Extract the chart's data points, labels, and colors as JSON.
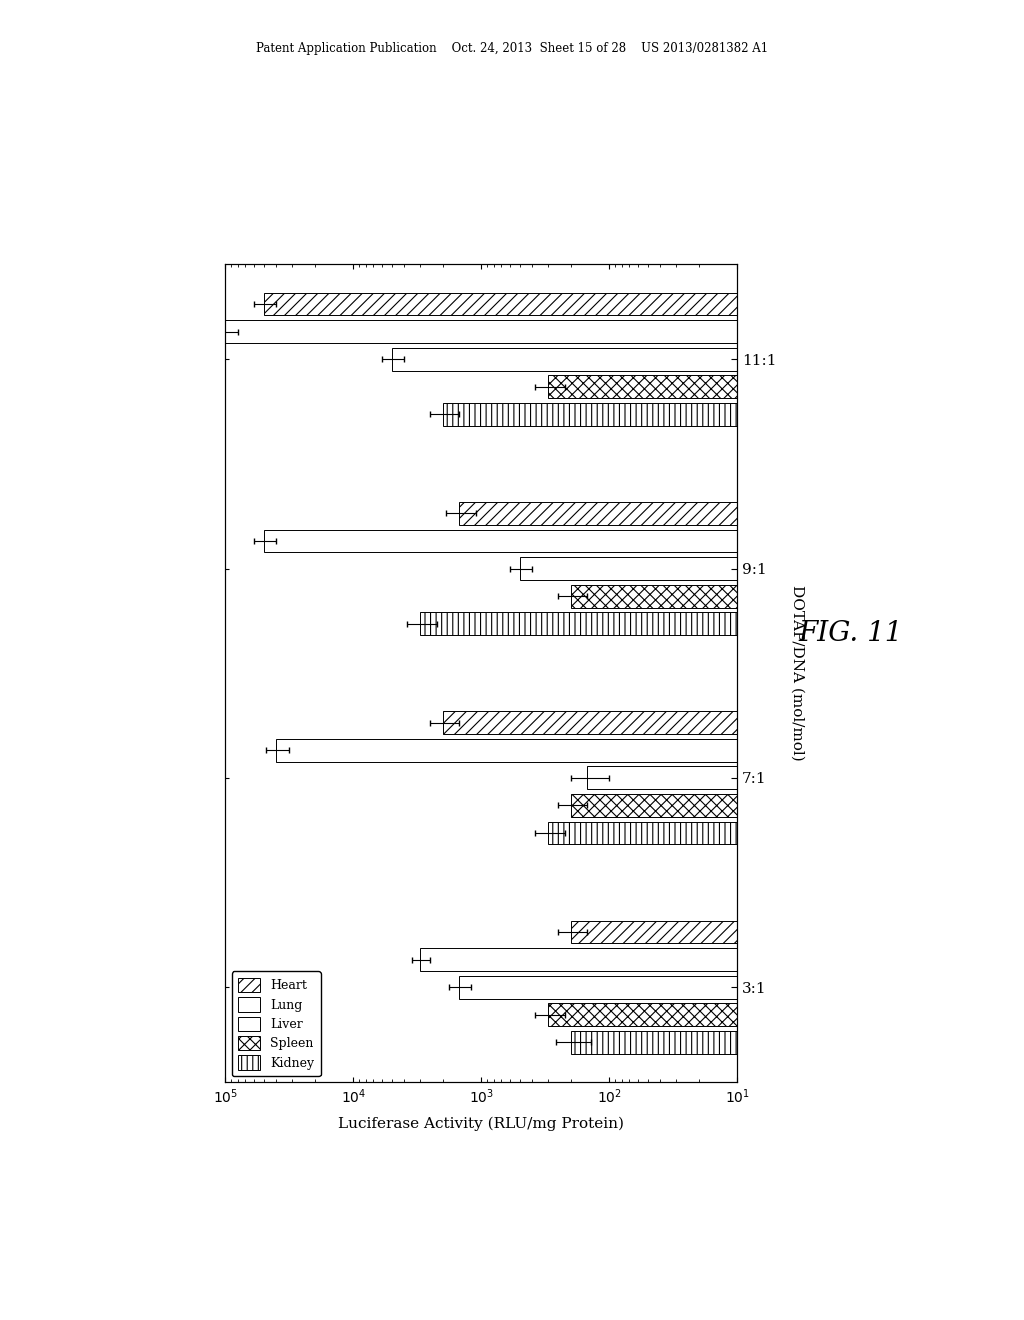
{
  "title_header": "Patent Application Publication    Oct. 24, 2013  Sheet 15 of 28    US 2013/0281382 A1",
  "fig_label": "FIG. 11",
  "xlabel": "Luciferase Activity (RLU/mg Protein)",
  "ylabel": "DOTAP/DNA (mol/mol)",
  "groups": [
    "3:1",
    "7:1",
    "9:1",
    "11:1"
  ],
  "tissues": [
    "Heart",
    "Lung",
    "Liver",
    "Spleen",
    "Kidney"
  ],
  "values": {
    "3:1": [
      200,
      3000,
      1500,
      300,
      200
    ],
    "7:1": [
      2000,
      40000,
      150,
      200,
      300
    ],
    "9:1": [
      1500,
      50000,
      500,
      200,
      3000
    ],
    "11:1": [
      50000,
      100000,
      5000,
      300,
      2000
    ]
  },
  "errors": {
    "3:1": [
      50,
      500,
      300,
      80,
      60
    ],
    "7:1": [
      500,
      8000,
      50,
      50,
      80
    ],
    "9:1": [
      400,
      10000,
      100,
      50,
      800
    ],
    "11:1": [
      10000,
      20000,
      1000,
      80,
      500
    ]
  },
  "background_color": "#ffffff",
  "bar_height": 0.12,
  "fontsize": 10,
  "header_fontsize": 8.5,
  "fig_label_fontsize": 20
}
